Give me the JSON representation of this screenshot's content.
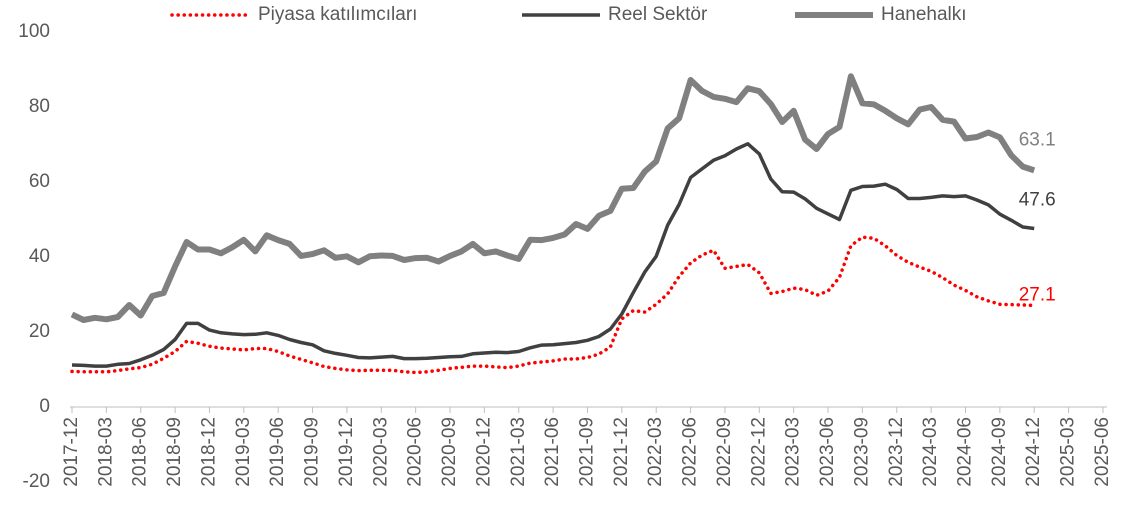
{
  "chart_data": {
    "type": "line",
    "categories": [
      "2017-12",
      null,
      null,
      "2018-03",
      null,
      null,
      "2018-06",
      null,
      null,
      "2018-09",
      null,
      null,
      "2018-12",
      null,
      null,
      "2019-03",
      null,
      null,
      "2019-06",
      null,
      null,
      "2019-09",
      null,
      null,
      "2019-12",
      null,
      null,
      "2020-03",
      null,
      null,
      "2020-06",
      null,
      null,
      "2020-09",
      null,
      null,
      "2020-12",
      null,
      null,
      "2021-03",
      null,
      null,
      "2021-06",
      null,
      null,
      "2021-09",
      null,
      null,
      "2021-12",
      null,
      null,
      "2022-03",
      null,
      null,
      "2022-06",
      null,
      null,
      "2022-09",
      null,
      null,
      "2022-12",
      null,
      null,
      "2023-03",
      null,
      null,
      "2023-06",
      null,
      null,
      "2023-09",
      null,
      null,
      "2023-12",
      null,
      null,
      "2024-03",
      null,
      null,
      "2024-06",
      null,
      null,
      "2024-09",
      null,
      null,
      "2024-12",
      null,
      null,
      "2025-03",
      null,
      null,
      "2025-06"
    ],
    "series": [
      {
        "name": "Piyasa katılımcıları",
        "color": "#ff0000",
        "dash": "dotted",
        "values": [
          9.5,
          9.4,
          9.4,
          9.4,
          9.7,
          10.2,
          10.5,
          11.4,
          13,
          14.8,
          17.5,
          17,
          16.2,
          15.7,
          15.5,
          15.2,
          15.6,
          15.6,
          14.8,
          13.6,
          12.7,
          11.8,
          10.8,
          10.3,
          9.9,
          9.7,
          9.8,
          9.8,
          9.8,
          9.4,
          9.2,
          9.4,
          9.8,
          10.3,
          10.6,
          10.9,
          10.9,
          10.7,
          10.5,
          10.9,
          11.7,
          12,
          12.3,
          12.8,
          12.8,
          13.2,
          14.1,
          16,
          23.5,
          25.7,
          25.3,
          27.4,
          30.2,
          34.8,
          38.4,
          40.5,
          41.8,
          37,
          37.5,
          38,
          35.8,
          30.3,
          30.8,
          31.7,
          31.3,
          29.8,
          30.9,
          34.6,
          43,
          45.3,
          45,
          43,
          40.4,
          38.6,
          37.3,
          36.2,
          34.5,
          32.5,
          31.1,
          29.4,
          28.3,
          27.4,
          27.3,
          27.2,
          27.1,
          null,
          null,
          null,
          null,
          null,
          null
        ]
      },
      {
        "name": "Reel Sektör",
        "color": "#404040",
        "values": [
          11.2,
          11.1,
          10.9,
          10.9,
          11.4,
          11.6,
          12.6,
          13.8,
          15.3,
          18,
          22.3,
          22.3,
          20.5,
          19.8,
          19.5,
          19.3,
          19.4,
          19.8,
          19.1,
          18,
          17.2,
          16.6,
          15,
          14.3,
          13.8,
          13.2,
          13.1,
          13.3,
          13.5,
          12.9,
          12.9,
          13,
          13.2,
          13.4,
          13.5,
          14.2,
          14.4,
          14.6,
          14.5,
          14.8,
          15.8,
          16.5,
          16.6,
          16.9,
          17.2,
          17.8,
          18.8,
          20.8,
          24.8,
          30.5,
          36,
          40.2,
          48.5,
          54,
          61.2,
          63.5,
          65.8,
          67,
          68.8,
          70.2,
          67.5,
          60.8,
          57.4,
          57.3,
          55.5,
          53,
          51.5,
          50,
          57.8,
          58.8,
          58.9,
          59.4,
          58,
          55.6,
          55.6,
          55.9,
          56.3,
          56.1,
          56.3,
          55.2,
          53.9,
          51.4,
          49.8,
          48,
          47.6,
          null,
          null,
          null,
          null,
          null,
          null
        ]
      },
      {
        "name": "Hanehalkı",
        "color": "#808080",
        "values": [
          24.7,
          23.2,
          23.8,
          23.4,
          24,
          27.2,
          24.4,
          29.6,
          30.4,
          37.5,
          44,
          42,
          42,
          41,
          42.6,
          44.6,
          41.5,
          45.8,
          44.5,
          43.5,
          40.3,
          40.8,
          41.8,
          39.8,
          40.2,
          38.6,
          40.2,
          40.4,
          40.3,
          39.2,
          39.7,
          39.8,
          38.8,
          40.3,
          41.5,
          43.5,
          41,
          41.5,
          40.4,
          39.5,
          44.6,
          44.5,
          45.1,
          46,
          48.8,
          47.5,
          51,
          52.3,
          58.2,
          58.4,
          62.8,
          65.5,
          74.3,
          77,
          87.2,
          84.3,
          82.7,
          82.2,
          81.3,
          85,
          84.2,
          80.8,
          76,
          79,
          71.3,
          68.8,
          72.8,
          74.7,
          88.2,
          81,
          80.7,
          79,
          77,
          75.4,
          79.3,
          80,
          76.6,
          76.1,
          71.6,
          72,
          73.2,
          71.9,
          67.1,
          64.1,
          63.1,
          null,
          null,
          null,
          null,
          null,
          null
        ]
      }
    ],
    "ylim": [
      -20,
      100
    ],
    "yticks": [
      -20,
      0,
      20,
      40,
      60,
      80,
      100
    ],
    "grid": false,
    "legend": "top",
    "data_labels": "last"
  }
}
